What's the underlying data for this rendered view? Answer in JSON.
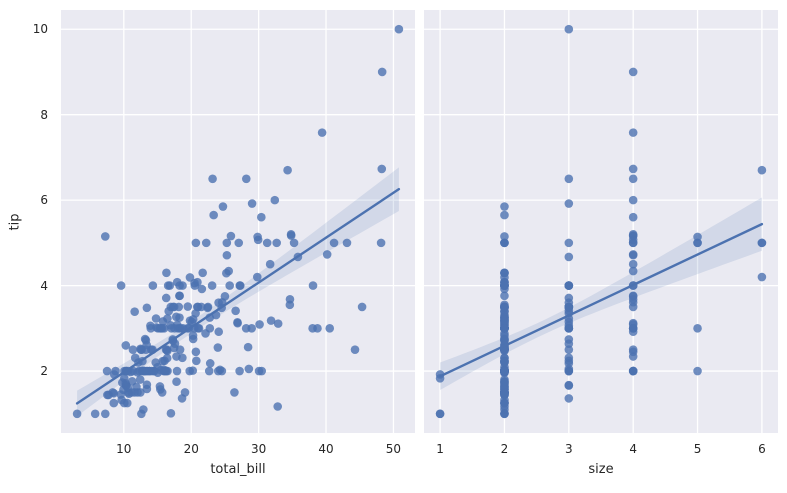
{
  "chart_data": {
    "type": "scatter",
    "title": "",
    "ylabel": "tip",
    "ylim": [
      0.55,
      10.45
    ],
    "yticks": [
      2,
      4,
      6,
      8,
      10
    ],
    "grid": true,
    "legend": false,
    "style": "seaborn-darkgrid",
    "regression": {
      "show_line": true,
      "show_ci_band": true,
      "ci_level": 95
    },
    "colors": {
      "point": "#4c72b0",
      "line": "#4c72b0",
      "band": "#4c72b0",
      "panel_bg": "#eaeaf2",
      "grid": "#ffffff",
      "text": "#262626",
      "figure_bg": "#ffffff"
    },
    "columns": [
      "total_bill",
      "tip",
      "size"
    ],
    "panels": [
      {
        "xlabel": "total_bill",
        "x_col": 0,
        "xlim": [
          0.68,
          53.2
        ],
        "xticks": [
          10,
          20,
          30,
          40,
          50
        ]
      },
      {
        "xlabel": "size",
        "x_col": 2,
        "xlim": [
          0.75,
          6.25
        ],
        "xticks": [
          1,
          2,
          3,
          4,
          5,
          6
        ]
      }
    ],
    "points": [
      [
        16.99,
        1.01,
        2
      ],
      [
        10.34,
        1.66,
        3
      ],
      [
        21.01,
        3.5,
        3
      ],
      [
        23.68,
        3.31,
        2
      ],
      [
        24.59,
        3.61,
        4
      ],
      [
        25.29,
        4.71,
        4
      ],
      [
        8.77,
        2.0,
        2
      ],
      [
        26.88,
        3.12,
        4
      ],
      [
        15.04,
        1.96,
        2
      ],
      [
        14.78,
        3.23,
        2
      ],
      [
        10.27,
        1.71,
        2
      ],
      [
        35.26,
        5.0,
        4
      ],
      [
        15.42,
        1.57,
        2
      ],
      [
        18.43,
        3.0,
        4
      ],
      [
        14.83,
        3.02,
        2
      ],
      [
        21.58,
        3.92,
        2
      ],
      [
        10.33,
        1.67,
        3
      ],
      [
        16.29,
        3.71,
        3
      ],
      [
        16.97,
        3.5,
        3
      ],
      [
        20.65,
        3.35,
        3
      ],
      [
        17.92,
        4.08,
        2
      ],
      [
        20.29,
        2.75,
        2
      ],
      [
        15.77,
        2.23,
        2
      ],
      [
        39.42,
        7.58,
        4
      ],
      [
        19.82,
        3.18,
        2
      ],
      [
        17.81,
        2.34,
        4
      ],
      [
        13.37,
        2.0,
        2
      ],
      [
        12.69,
        2.0,
        2
      ],
      [
        21.7,
        4.3,
        2
      ],
      [
        19.65,
        3.0,
        3
      ],
      [
        9.55,
        1.45,
        2
      ],
      [
        18.35,
        2.5,
        4
      ],
      [
        15.06,
        3.0,
        2
      ],
      [
        20.69,
        2.45,
        4
      ],
      [
        17.78,
        3.27,
        2
      ],
      [
        24.06,
        3.6,
        3
      ],
      [
        16.31,
        2.0,
        3
      ],
      [
        16.93,
        3.07,
        3
      ],
      [
        18.69,
        2.31,
        3
      ],
      [
        31.27,
        5.0,
        3
      ],
      [
        16.04,
        2.24,
        3
      ],
      [
        17.46,
        2.54,
        2
      ],
      [
        13.94,
        3.06,
        2
      ],
      [
        9.68,
        1.32,
        2
      ],
      [
        30.4,
        5.6,
        4
      ],
      [
        18.29,
        3.0,
        2
      ],
      [
        22.23,
        5.0,
        2
      ],
      [
        32.4,
        6.0,
        4
      ],
      [
        28.55,
        2.05,
        3
      ],
      [
        18.04,
        3.0,
        2
      ],
      [
        12.54,
        2.5,
        2
      ],
      [
        10.29,
        2.6,
        2
      ],
      [
        34.81,
        5.2,
        4
      ],
      [
        9.94,
        1.56,
        2
      ],
      [
        25.56,
        4.34,
        4
      ],
      [
        19.49,
        3.51,
        2
      ],
      [
        38.01,
        3.0,
        4
      ],
      [
        26.41,
        1.5,
        2
      ],
      [
        11.24,
        1.76,
        2
      ],
      [
        48.27,
        6.73,
        4
      ],
      [
        20.29,
        3.21,
        2
      ],
      [
        13.81,
        2.0,
        2
      ],
      [
        11.02,
        1.98,
        2
      ],
      [
        18.29,
        3.76,
        4
      ],
      [
        17.59,
        2.64,
        3
      ],
      [
        20.08,
        3.15,
        3
      ],
      [
        16.45,
        2.47,
        2
      ],
      [
        3.07,
        1.0,
        1
      ],
      [
        20.23,
        2.01,
        2
      ],
      [
        15.01,
        2.09,
        2
      ],
      [
        12.02,
        1.97,
        2
      ],
      [
        17.07,
        3.0,
        3
      ],
      [
        26.86,
        3.14,
        2
      ],
      [
        25.28,
        5.0,
        2
      ],
      [
        14.73,
        2.2,
        2
      ],
      [
        10.51,
        1.25,
        2
      ],
      [
        17.92,
        3.08,
        2
      ],
      [
        27.2,
        4.0,
        4
      ],
      [
        22.76,
        3.0,
        2
      ],
      [
        17.29,
        2.71,
        2
      ],
      [
        19.44,
        3.0,
        2
      ],
      [
        16.66,
        3.4,
        2
      ],
      [
        10.07,
        1.83,
        1
      ],
      [
        32.68,
        5.0,
        2
      ],
      [
        15.98,
        2.03,
        2
      ],
      [
        34.83,
        5.17,
        4
      ],
      [
        13.03,
        2.0,
        2
      ],
      [
        18.28,
        4.0,
        2
      ],
      [
        24.71,
        5.85,
        2
      ],
      [
        21.16,
        3.0,
        2
      ],
      [
        28.97,
        3.0,
        2
      ],
      [
        22.49,
        3.5,
        2
      ],
      [
        5.75,
        1.0,
        2
      ],
      [
        16.32,
        4.3,
        2
      ],
      [
        22.75,
        3.25,
        2
      ],
      [
        40.17,
        4.73,
        4
      ],
      [
        27.28,
        4.0,
        2
      ],
      [
        12.03,
        1.5,
        2
      ],
      [
        21.01,
        3.0,
        2
      ],
      [
        12.46,
        1.5,
        2
      ],
      [
        11.35,
        2.5,
        2
      ],
      [
        15.38,
        3.0,
        2
      ],
      [
        44.3,
        2.5,
        3
      ],
      [
        22.42,
        3.48,
        2
      ],
      [
        20.92,
        4.08,
        2
      ],
      [
        15.36,
        1.64,
        2
      ],
      [
        20.49,
        4.06,
        2
      ],
      [
        25.21,
        4.29,
        2
      ],
      [
        18.24,
        3.76,
        2
      ],
      [
        14.31,
        4.0,
        2
      ],
      [
        14.0,
        3.0,
        2
      ],
      [
        7.25,
        1.0,
        1
      ],
      [
        38.07,
        4.0,
        3
      ],
      [
        23.95,
        2.55,
        2
      ],
      [
        25.71,
        4.0,
        3
      ],
      [
        17.31,
        3.5,
        2
      ],
      [
        29.93,
        5.07,
        4
      ],
      [
        10.65,
        1.5,
        2
      ],
      [
        12.43,
        1.8,
        2
      ],
      [
        24.08,
        2.92,
        4
      ],
      [
        11.69,
        2.31,
        2
      ],
      [
        13.42,
        1.68,
        2
      ],
      [
        14.26,
        2.5,
        2
      ],
      [
        15.95,
        2.0,
        2
      ],
      [
        12.48,
        2.52,
        2
      ],
      [
        29.8,
        4.2,
        6
      ],
      [
        8.52,
        1.48,
        2
      ],
      [
        14.52,
        2.0,
        2
      ],
      [
        11.38,
        2.0,
        2
      ],
      [
        22.82,
        2.18,
        3
      ],
      [
        19.08,
        1.5,
        2
      ],
      [
        20.27,
        2.83,
        2
      ],
      [
        11.17,
        1.5,
        2
      ],
      [
        12.26,
        2.0,
        2
      ],
      [
        18.26,
        3.25,
        2
      ],
      [
        8.51,
        1.25,
        2
      ],
      [
        10.33,
        2.0,
        2
      ],
      [
        14.15,
        2.0,
        2
      ],
      [
        16.0,
        2.0,
        2
      ],
      [
        13.16,
        2.75,
        2
      ],
      [
        17.47,
        3.5,
        2
      ],
      [
        34.3,
        6.7,
        6
      ],
      [
        41.19,
        5.0,
        5
      ],
      [
        27.05,
        5.0,
        6
      ],
      [
        16.43,
        2.3,
        2
      ],
      [
        8.35,
        1.5,
        2
      ],
      [
        18.64,
        1.36,
        3
      ],
      [
        11.87,
        1.63,
        2
      ],
      [
        9.78,
        1.73,
        2
      ],
      [
        7.51,
        2.0,
        2
      ],
      [
        14.07,
        2.5,
        2
      ],
      [
        13.13,
        2.0,
        2
      ],
      [
        17.26,
        2.74,
        3
      ],
      [
        24.55,
        2.0,
        4
      ],
      [
        19.77,
        2.0,
        4
      ],
      [
        29.85,
        5.14,
        5
      ],
      [
        48.17,
        5.0,
        6
      ],
      [
        25.0,
        3.75,
        4
      ],
      [
        13.39,
        2.61,
        2
      ],
      [
        16.49,
        2.0,
        4
      ],
      [
        21.5,
        3.5,
        4
      ],
      [
        12.66,
        2.5,
        2
      ],
      [
        16.21,
        2.0,
        3
      ],
      [
        13.81,
        2.0,
        2
      ],
      [
        17.51,
        3.0,
        2
      ],
      [
        24.52,
        3.48,
        3
      ],
      [
        20.76,
        2.24,
        2
      ],
      [
        31.71,
        4.5,
        4
      ],
      [
        10.59,
        1.61,
        2
      ],
      [
        10.63,
        2.0,
        2
      ],
      [
        50.81,
        10.0,
        3
      ],
      [
        15.81,
        3.16,
        2
      ],
      [
        7.25,
        5.15,
        2
      ],
      [
        31.85,
        3.18,
        2
      ],
      [
        16.82,
        4.0,
        2
      ],
      [
        32.9,
        3.11,
        2
      ],
      [
        17.89,
        2.0,
        2
      ],
      [
        14.48,
        2.0,
        2
      ],
      [
        9.6,
        4.0,
        2
      ],
      [
        34.63,
        3.55,
        2
      ],
      [
        34.65,
        3.68,
        4
      ],
      [
        23.33,
        5.65,
        2
      ],
      [
        45.35,
        3.5,
        3
      ],
      [
        23.17,
        6.5,
        4
      ],
      [
        40.55,
        3.0,
        2
      ],
      [
        20.69,
        5.0,
        5
      ],
      [
        20.9,
        3.5,
        3
      ],
      [
        30.46,
        2.0,
        5
      ],
      [
        18.15,
        3.5,
        3
      ],
      [
        23.1,
        4.0,
        3
      ],
      [
        15.69,
        1.5,
        2
      ],
      [
        19.81,
        4.19,
        2
      ],
      [
        28.44,
        2.56,
        2
      ],
      [
        15.48,
        2.02,
        2
      ],
      [
        16.58,
        4.0,
        2
      ],
      [
        7.56,
        1.44,
        2
      ],
      [
        10.34,
        2.0,
        2
      ],
      [
        43.11,
        5.0,
        4
      ],
      [
        13.0,
        2.0,
        2
      ],
      [
        13.51,
        2.0,
        2
      ],
      [
        18.71,
        4.0,
        3
      ],
      [
        12.74,
        2.01,
        2
      ],
      [
        13.0,
        2.0,
        2
      ],
      [
        16.4,
        2.5,
        2
      ],
      [
        20.53,
        4.0,
        4
      ],
      [
        16.47,
        3.23,
        3
      ],
      [
        26.59,
        3.41,
        3
      ],
      [
        38.73,
        3.0,
        4
      ],
      [
        24.27,
        2.03,
        2
      ],
      [
        12.76,
        2.23,
        2
      ],
      [
        30.06,
        2.0,
        3
      ],
      [
        25.89,
        5.16,
        4
      ],
      [
        48.33,
        9.0,
        4
      ],
      [
        13.27,
        2.5,
        2
      ],
      [
        28.17,
        6.5,
        3
      ],
      [
        12.9,
        1.1,
        2
      ],
      [
        28.15,
        3.0,
        5
      ],
      [
        11.59,
        1.5,
        2
      ],
      [
        7.74,
        1.44,
        2
      ],
      [
        30.14,
        3.09,
        4
      ],
      [
        12.16,
        2.2,
        2
      ],
      [
        13.42,
        3.48,
        2
      ],
      [
        8.58,
        1.92,
        1
      ],
      [
        15.98,
        3.0,
        3
      ],
      [
        13.42,
        1.58,
        2
      ],
      [
        16.27,
        2.5,
        2
      ],
      [
        10.09,
        2.0,
        2
      ],
      [
        20.45,
        3.0,
        4
      ],
      [
        13.28,
        2.72,
        2
      ],
      [
        22.12,
        2.88,
        2
      ],
      [
        24.01,
        2.0,
        4
      ],
      [
        15.69,
        3.0,
        3
      ],
      [
        11.61,
        3.39,
        2
      ],
      [
        10.77,
        1.47,
        2
      ],
      [
        15.53,
        3.0,
        2
      ],
      [
        10.07,
        1.25,
        2
      ],
      [
        12.6,
        1.0,
        2
      ],
      [
        32.83,
        1.17,
        2
      ],
      [
        35.83,
        4.67,
        3
      ],
      [
        29.03,
        5.92,
        3
      ],
      [
        27.18,
        2.0,
        2
      ],
      [
        22.67,
        2.0,
        2
      ],
      [
        17.82,
        1.75,
        2
      ],
      [
        18.78,
        3.0,
        2
      ]
    ]
  }
}
